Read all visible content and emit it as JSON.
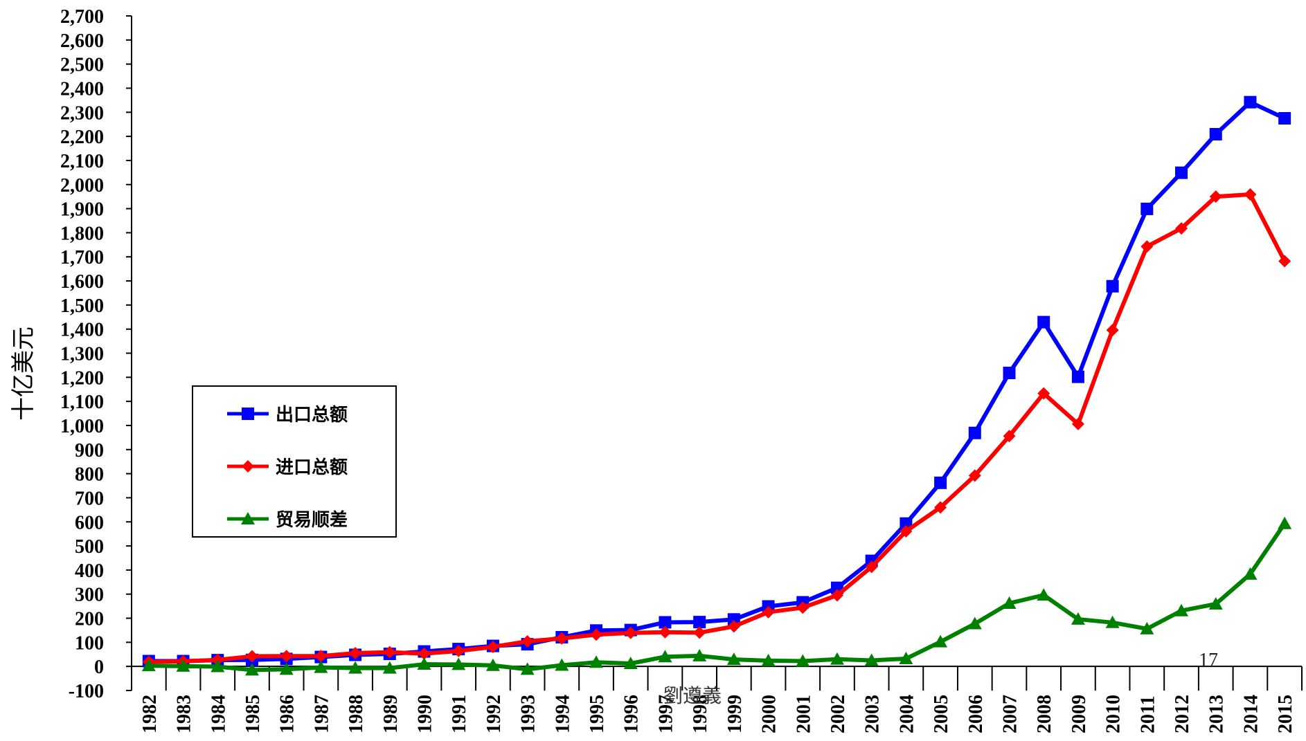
{
  "chart_data": {
    "type": "line",
    "title": "",
    "ylabel": "十亿美元",
    "xlabel": "",
    "ylim": [
      -100,
      2700
    ],
    "ytick_step": 100,
    "grid": false,
    "legend_position": "left",
    "categories": [
      "1982",
      "1983",
      "1984",
      "1985",
      "1986",
      "1987",
      "1988",
      "1989",
      "1990",
      "1991",
      "1992",
      "1993",
      "1994",
      "1995",
      "1996",
      "1997",
      "1998",
      "1999",
      "2000",
      "2001",
      "2002",
      "2003",
      "2004",
      "2005",
      "2006",
      "2007",
      "2008",
      "2009",
      "2010",
      "2011",
      "2012",
      "2013",
      "2014",
      "2015"
    ],
    "series": [
      {
        "name": "出口总额",
        "color": "#0000ff",
        "marker": "square",
        "values": [
          22,
          22,
          26,
          27,
          31,
          39,
          48,
          52,
          62,
          72,
          85,
          92,
          121,
          149,
          151,
          183,
          184,
          195,
          249,
          266,
          326,
          438,
          593,
          762,
          969,
          1218,
          1429,
          1202,
          1578,
          1899,
          2049,
          2209,
          2342,
          2275
        ]
      },
      {
        "name": "进口总额",
        "color": "#ff0000",
        "marker": "diamond",
        "values": [
          19,
          21,
          27,
          42,
          43,
          43,
          55,
          59,
          53,
          64,
          81,
          104,
          116,
          132,
          139,
          142,
          140,
          166,
          225,
          244,
          295,
          413,
          561,
          660,
          792,
          956,
          1133,
          1006,
          1396,
          1743,
          1818,
          1950,
          1959,
          1682
        ]
      },
      {
        "name": "贸易顺差",
        "color": "#008000",
        "marker": "triangle",
        "values": [
          3,
          1,
          -1,
          -15,
          -12,
          -4,
          -7,
          -7,
          9,
          8,
          4,
          -12,
          5,
          17,
          12,
          40,
          44,
          29,
          24,
          22,
          30,
          25,
          32,
          102,
          177,
          262,
          296,
          196,
          182,
          156,
          231,
          259,
          383,
          593
        ]
      }
    ],
    "annotations": [
      "17"
    ],
    "watermark": "劉遵義"
  }
}
